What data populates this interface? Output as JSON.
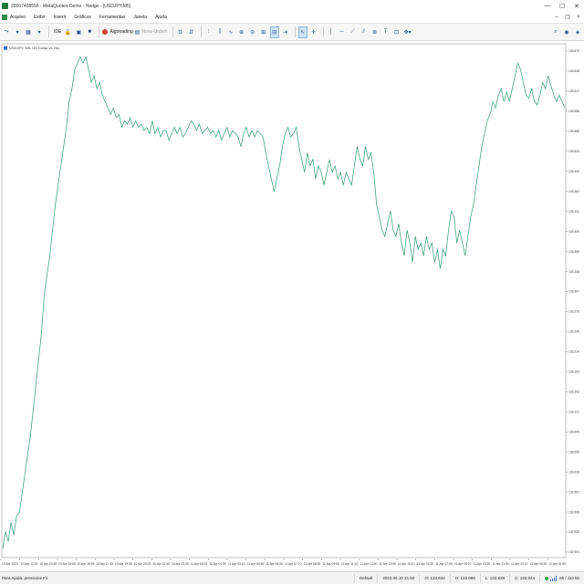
{
  "window": {
    "title": "20067408556 - MetaQuotes-Demo - Hedge - [USDJPY,M5]",
    "minimize": "—",
    "maximize": "☐",
    "close": "✕"
  },
  "menu": {
    "items": [
      "Arquivo",
      "Exibir",
      "Inserir",
      "Gráficos",
      "Ferramentas",
      "Janela",
      "Ajuda"
    ]
  },
  "toolbar": {
    "ide_label": "IDE",
    "algotrading_label": "Algotrading",
    "new_order_label": "Nova Ordem"
  },
  "chart": {
    "caption": "USDJPY, M5:  US Dollar vs Yen",
    "line_color": "#2e9b6b",
    "background": "#ffffff",
    "price_labels": [
      "133.679",
      "133.648",
      "133.617",
      "133.586",
      "133.555",
      "133.524",
      "133.493",
      "133.462",
      "133.431",
      "133.400",
      "133.369",
      "133.338",
      "133.307",
      "133.276",
      "133.245",
      "133.214",
      "133.183",
      "133.152",
      "133.121",
      "133.090",
      "133.059",
      "133.028",
      "132.997",
      "132.966",
      "132.935",
      "132.904"
    ],
    "time_labels": [
      "10 Apr 2023",
      "10 Apr 12:25",
      "10 Apr 13:45",
      "10 Apr 15:05",
      "10 Apr 16:25",
      "10 Apr 17:45",
      "10 Apr 19:05",
      "10 Apr 20:25",
      "10 Apr 21:45",
      "10 Apr 23:05",
      "11 Apr 00:25",
      "11 Apr 01:50",
      "11 Apr 03:10",
      "11 Apr 04:30",
      "11 Apr 05:50",
      "11 Apr 07:10",
      "11 Apr 08:30",
      "11 Apr 09:50",
      "11 Apr 11:10",
      "11 Apr 12:30",
      "11 Apr 13:50",
      "11 Apr 15:10",
      "11 Apr 16:30",
      "11 Apr 17:50",
      "11 Apr 19:10",
      "11 Apr 20:30",
      "11 Apr 21:50",
      "11 Apr 23:10",
      "12 Apr 00:30",
      "12 Apr 01:55"
    ]
  },
  "chart_data": {
    "type": "line",
    "title": "USDJPY, M5:  US Dollar vs Yen",
    "xlabel": "",
    "ylabel": "",
    "ylim": [
      132.89,
      133.69
    ],
    "grid": false,
    "series": [
      {
        "values": [
          132.904,
          132.93,
          132.915,
          132.945,
          132.925,
          132.955,
          132.96,
          132.99,
          133.02,
          133.05,
          133.08,
          133.12,
          133.16,
          133.2,
          133.24,
          133.3,
          133.33,
          133.36,
          133.4,
          133.44,
          133.47,
          133.5,
          133.53,
          133.56,
          133.6,
          133.62,
          133.65,
          133.66,
          133.67,
          133.66,
          133.67,
          133.65,
          133.63,
          133.64,
          133.62,
          133.63,
          133.61,
          133.6,
          133.59,
          133.58,
          133.59,
          133.575,
          133.58,
          133.56,
          133.57,
          133.565,
          133.575,
          133.56,
          133.57,
          133.56,
          133.565,
          133.555,
          133.56,
          133.55,
          133.57,
          133.55,
          133.56,
          133.545,
          133.555,
          133.555,
          133.54,
          133.55,
          133.56,
          133.55,
          133.56,
          133.545,
          133.55,
          133.56,
          133.57,
          133.565,
          133.555,
          133.565,
          133.55,
          133.555,
          133.56,
          133.55,
          133.555,
          133.545,
          133.555,
          133.54,
          133.55,
          133.56,
          133.545,
          133.555,
          133.55,
          133.545,
          133.53,
          133.55,
          133.56,
          133.545,
          133.555,
          133.545,
          133.555,
          133.55,
          133.545,
          133.52,
          133.5,
          133.48,
          133.46,
          133.48,
          133.5,
          133.53,
          133.55,
          133.56,
          133.545,
          133.55,
          133.56,
          133.53,
          133.51,
          133.49,
          133.52,
          133.5,
          133.51,
          133.48,
          133.5,
          133.49,
          133.47,
          133.49,
          133.51,
          133.49,
          133.5,
          133.48,
          133.49,
          133.47,
          133.49,
          133.48,
          133.47,
          133.5,
          133.53,
          133.51,
          133.5,
          133.53,
          133.51,
          133.52,
          133.49,
          133.44,
          133.42,
          133.4,
          133.39,
          133.41,
          133.43,
          133.4,
          133.39,
          133.41,
          133.38,
          133.36,
          133.4,
          133.38,
          133.35,
          133.39,
          133.37,
          133.38,
          133.36,
          133.39,
          133.37,
          133.38,
          133.35,
          133.37,
          133.34,
          133.37,
          133.36,
          133.4,
          133.43,
          133.42,
          133.38,
          133.4,
          133.38,
          133.36,
          133.39,
          133.42,
          133.44,
          133.47,
          133.5,
          133.53,
          133.55,
          133.57,
          133.58,
          133.6,
          133.59,
          133.61,
          133.62,
          133.6,
          133.615,
          133.6,
          133.62,
          133.64,
          133.66,
          133.65,
          133.63,
          133.61,
          133.605,
          133.62,
          133.6,
          133.595,
          133.61,
          133.63,
          133.62,
          133.64,
          133.625,
          133.61,
          133.6,
          133.61,
          133.6,
          133.59
        ]
      }
    ]
  },
  "status": {
    "help": "Para Ajuda, pressione F1",
    "profile": "Default",
    "datetime": "2023.04.10 21:50",
    "open": "O: 133.642",
    "high": "H: 133.669",
    "low": "L: 133.638",
    "close": "C: 133.644",
    "traffic": "65 / 110 kb"
  }
}
